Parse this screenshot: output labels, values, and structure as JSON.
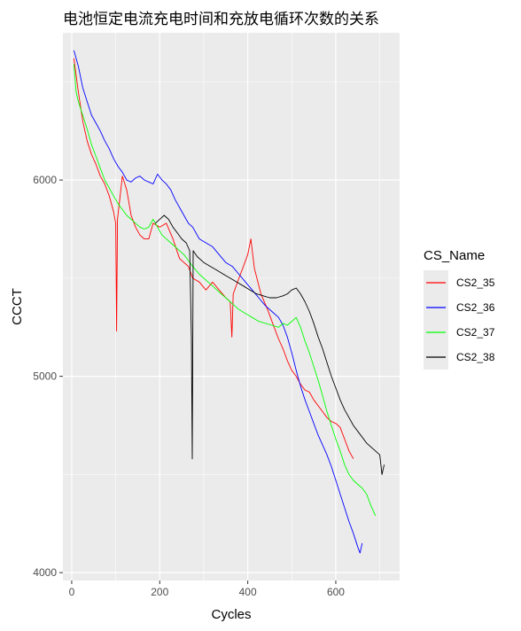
{
  "chart_data": {
    "type": "line",
    "title": "电池恒定电流充电时间和充放电循环次数的关系",
    "xlabel": "Cycles",
    "ylabel": "CCCT",
    "xlim": [
      -20,
      745
    ],
    "ylim": [
      3960,
      6750
    ],
    "x_ticks": [
      0,
      200,
      400,
      600
    ],
    "y_ticks": [
      4000,
      5000,
      6000
    ],
    "grid": true,
    "background": "#EBEBEB",
    "legend": {
      "title": "CS_Name",
      "position": "right"
    },
    "series": [
      {
        "name": "CS2_35",
        "color": "#FF0000",
        "points": [
          [
            5,
            6620
          ],
          [
            15,
            6450
          ],
          [
            25,
            6300
          ],
          [
            35,
            6200
          ],
          [
            45,
            6130
          ],
          [
            55,
            6080
          ],
          [
            65,
            6020
          ],
          [
            75,
            5980
          ],
          [
            85,
            5920
          ],
          [
            95,
            5840
          ],
          [
            100,
            5780
          ],
          [
            102,
            5230
          ],
          [
            104,
            5800
          ],
          [
            115,
            6020
          ],
          [
            125,
            5950
          ],
          [
            135,
            5820
          ],
          [
            145,
            5760
          ],
          [
            155,
            5720
          ],
          [
            165,
            5700
          ],
          [
            175,
            5700
          ],
          [
            185,
            5780
          ],
          [
            200,
            5760
          ],
          [
            215,
            5780
          ],
          [
            230,
            5700
          ],
          [
            245,
            5600
          ],
          [
            255,
            5580
          ],
          [
            265,
            5560
          ],
          [
            275,
            5500
          ],
          [
            290,
            5480
          ],
          [
            305,
            5440
          ],
          [
            320,
            5480
          ],
          [
            335,
            5440
          ],
          [
            350,
            5400
          ],
          [
            360,
            5380
          ],
          [
            364,
            5200
          ],
          [
            367,
            5420
          ],
          [
            380,
            5500
          ],
          [
            390,
            5560
          ],
          [
            400,
            5620
          ],
          [
            407,
            5700
          ],
          [
            415,
            5550
          ],
          [
            430,
            5420
          ],
          [
            445,
            5340
          ],
          [
            460,
            5250
          ],
          [
            470,
            5190
          ],
          [
            480,
            5140
          ],
          [
            490,
            5080
          ],
          [
            500,
            5030
          ],
          [
            510,
            5000
          ],
          [
            520,
            4960
          ],
          [
            530,
            4930
          ],
          [
            540,
            4920
          ],
          [
            550,
            4880
          ],
          [
            560,
            4850
          ],
          [
            570,
            4820
          ],
          [
            580,
            4790
          ],
          [
            590,
            4770
          ],
          [
            600,
            4760
          ],
          [
            610,
            4740
          ],
          [
            620,
            4680
          ],
          [
            630,
            4620
          ],
          [
            640,
            4580
          ]
        ]
      },
      {
        "name": "CS2_36",
        "color": "#0000FF",
        "points": [
          [
            5,
            6660
          ],
          [
            15,
            6580
          ],
          [
            25,
            6470
          ],
          [
            35,
            6400
          ],
          [
            45,
            6330
          ],
          [
            55,
            6290
          ],
          [
            65,
            6250
          ],
          [
            75,
            6200
          ],
          [
            85,
            6160
          ],
          [
            95,
            6110
          ],
          [
            105,
            6070
          ],
          [
            115,
            6040
          ],
          [
            125,
            6000
          ],
          [
            135,
            5990
          ],
          [
            145,
            6010
          ],
          [
            155,
            6020
          ],
          [
            165,
            6000
          ],
          [
            175,
            5990
          ],
          [
            185,
            5980
          ],
          [
            195,
            6030
          ],
          [
            205,
            6000
          ],
          [
            215,
            5980
          ],
          [
            225,
            5950
          ],
          [
            235,
            5900
          ],
          [
            245,
            5860
          ],
          [
            255,
            5820
          ],
          [
            265,
            5780
          ],
          [
            275,
            5760
          ],
          [
            290,
            5700
          ],
          [
            305,
            5680
          ],
          [
            320,
            5660
          ],
          [
            335,
            5620
          ],
          [
            350,
            5580
          ],
          [
            365,
            5560
          ],
          [
            380,
            5520
          ],
          [
            395,
            5480
          ],
          [
            410,
            5440
          ],
          [
            425,
            5400
          ],
          [
            440,
            5360
          ],
          [
            455,
            5330
          ],
          [
            470,
            5300
          ],
          [
            480,
            5260
          ],
          [
            490,
            5200
          ],
          [
            500,
            5120
          ],
          [
            510,
            5030
          ],
          [
            520,
            4950
          ],
          [
            530,
            4880
          ],
          [
            540,
            4820
          ],
          [
            550,
            4760
          ],
          [
            560,
            4700
          ],
          [
            570,
            4650
          ],
          [
            580,
            4600
          ],
          [
            590,
            4540
          ],
          [
            600,
            4470
          ],
          [
            610,
            4400
          ],
          [
            620,
            4330
          ],
          [
            630,
            4260
          ],
          [
            640,
            4200
          ],
          [
            650,
            4130
          ],
          [
            655,
            4100
          ],
          [
            660,
            4150
          ]
        ]
      },
      {
        "name": "CS2_37",
        "color": "#00FF00",
        "points": [
          [
            5,
            6590
          ],
          [
            10,
            6450
          ],
          [
            15,
            6400
          ],
          [
            25,
            6330
          ],
          [
            35,
            6260
          ],
          [
            45,
            6180
          ],
          [
            55,
            6120
          ],
          [
            65,
            6060
          ],
          [
            75,
            6000
          ],
          [
            85,
            5960
          ],
          [
            95,
            5920
          ],
          [
            105,
            5880
          ],
          [
            115,
            5850
          ],
          [
            125,
            5820
          ],
          [
            135,
            5800
          ],
          [
            145,
            5780
          ],
          [
            155,
            5760
          ],
          [
            165,
            5750
          ],
          [
            175,
            5760
          ],
          [
            185,
            5800
          ],
          [
            195,
            5760
          ],
          [
            205,
            5720
          ],
          [
            215,
            5700
          ],
          [
            225,
            5680
          ],
          [
            235,
            5660
          ],
          [
            245,
            5640
          ],
          [
            255,
            5620
          ],
          [
            265,
            5590
          ],
          [
            275,
            5560
          ],
          [
            290,
            5520
          ],
          [
            305,
            5490
          ],
          [
            320,
            5460
          ],
          [
            335,
            5430
          ],
          [
            350,
            5400
          ],
          [
            365,
            5370
          ],
          [
            380,
            5340
          ],
          [
            395,
            5320
          ],
          [
            410,
            5300
          ],
          [
            425,
            5280
          ],
          [
            440,
            5270
          ],
          [
            455,
            5260
          ],
          [
            470,
            5250
          ],
          [
            480,
            5270
          ],
          [
            490,
            5260
          ],
          [
            500,
            5280
          ],
          [
            510,
            5300
          ],
          [
            520,
            5250
          ],
          [
            530,
            5180
          ],
          [
            540,
            5120
          ],
          [
            550,
            5050
          ],
          [
            560,
            4980
          ],
          [
            570,
            4900
          ],
          [
            580,
            4820
          ],
          [
            590,
            4750
          ],
          [
            600,
            4680
          ],
          [
            610,
            4620
          ],
          [
            620,
            4550
          ],
          [
            630,
            4500
          ],
          [
            640,
            4470
          ],
          [
            650,
            4450
          ],
          [
            660,
            4430
          ],
          [
            670,
            4400
          ],
          [
            680,
            4340
          ],
          [
            690,
            4290
          ]
        ]
      },
      {
        "name": "CS2_38",
        "color": "#000000",
        "points": [
          [
            190,
            5780
          ],
          [
            200,
            5800
          ],
          [
            210,
            5820
          ],
          [
            220,
            5800
          ],
          [
            230,
            5760
          ],
          [
            240,
            5730
          ],
          [
            250,
            5700
          ],
          [
            260,
            5680
          ],
          [
            268,
            5640
          ],
          [
            272,
            5200
          ],
          [
            274,
            4580
          ],
          [
            276,
            5640
          ],
          [
            285,
            5610
          ],
          [
            300,
            5580
          ],
          [
            315,
            5560
          ],
          [
            330,
            5540
          ],
          [
            345,
            5520
          ],
          [
            360,
            5500
          ],
          [
            375,
            5480
          ],
          [
            390,
            5460
          ],
          [
            405,
            5440
          ],
          [
            420,
            5420
          ],
          [
            435,
            5410
          ],
          [
            450,
            5400
          ],
          [
            465,
            5400
          ],
          [
            480,
            5410
          ],
          [
            490,
            5420
          ],
          [
            500,
            5440
          ],
          [
            510,
            5450
          ],
          [
            520,
            5420
          ],
          [
            530,
            5380
          ],
          [
            540,
            5330
          ],
          [
            550,
            5270
          ],
          [
            560,
            5200
          ],
          [
            570,
            5140
          ],
          [
            580,
            5070
          ],
          [
            590,
            5000
          ],
          [
            600,
            4940
          ],
          [
            610,
            4880
          ],
          [
            620,
            4830
          ],
          [
            630,
            4790
          ],
          [
            640,
            4750
          ],
          [
            650,
            4720
          ],
          [
            660,
            4690
          ],
          [
            670,
            4660
          ],
          [
            680,
            4640
          ],
          [
            690,
            4620
          ],
          [
            700,
            4600
          ],
          [
            705,
            4500
          ],
          [
            710,
            4550
          ]
        ]
      }
    ]
  }
}
